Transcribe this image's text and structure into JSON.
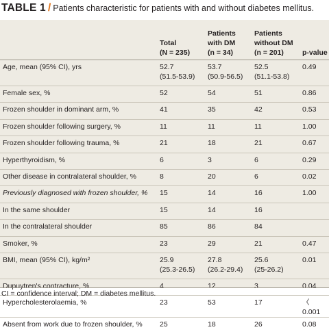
{
  "caption": {
    "label": "TABLE 1",
    "slash": "/",
    "text": "Patients characteristic for patients with and without diabetes mellitus."
  },
  "table": {
    "headers": [
      "",
      "Total (N = 235)",
      "Patients with DM (n = 34)",
      "Patients without DM (n = 201)",
      "p-value"
    ],
    "header_lines": [
      [
        ""
      ],
      [
        "Total",
        "(N = 235)"
      ],
      [
        "Patients",
        "with DM",
        "(n = 34)"
      ],
      [
        "Patients",
        "without DM",
        "(n = 201)"
      ],
      [
        "p-value"
      ]
    ],
    "rows": [
      {
        "label": "Age, mean (95% CI), yrs",
        "total": "52.7",
        "total2": "(51.5-53.9)",
        "dm": "53.7",
        "dm2": "(50.9-56.5)",
        "nodm": "52.5",
        "nodm2": "(51.1-53.8)",
        "p": "0.49"
      },
      {
        "label": "Female sex, %",
        "total": "52",
        "dm": "54",
        "nodm": "51",
        "p": "0.86"
      },
      {
        "label": "Frozen shoulder in dominant arm, %",
        "total": "41",
        "dm": "35",
        "nodm": "42",
        "p": "0.53"
      },
      {
        "label": "Frozen shoulder following surgery, %",
        "total": "11",
        "dm": "11",
        "nodm": "11",
        "p": "1.00"
      },
      {
        "label": "Frozen shoulder following trauma, %",
        "total": "21",
        "dm": "18",
        "nodm": "21",
        "p": "0.67"
      },
      {
        "label": "Hyperthyroidism, %",
        "total": "6",
        "dm": "3",
        "nodm": "6",
        "p": "0.29"
      },
      {
        "label": "Other disease in contralateral shoulder, %",
        "total": "8",
        "dm": "20",
        "nodm": "6",
        "p": "0.02"
      },
      {
        "label": "Previously diagnosed with frozen shoulder, %",
        "total": "15",
        "dm": "14",
        "nodm": "16",
        "p": "1.00"
      },
      {
        "label": "In the same shoulder",
        "total": "15",
        "dm": "14",
        "nodm": "16",
        "p": ""
      },
      {
        "label": "In the contralateral shoulder",
        "total": "85",
        "dm": "86",
        "nodm": "84",
        "p": ""
      },
      {
        "label": "Smoker, %",
        "total": "23",
        "dm": "29",
        "nodm": "21",
        "p": "0.47"
      },
      {
        "label": "BMI, mean (95% CI), kg/m²",
        "total": "25.9",
        "total2": "(25.3-26.5)",
        "dm": "27.8",
        "dm2": "(26.2-29.4)",
        "nodm": "25.6",
        "nodm2": "(25-26.2)",
        "p": "0.01"
      },
      {
        "label": "Dupuytren's contracture, %",
        "total": "4",
        "dm": "12",
        "nodm": "3",
        "p": "0.04"
      },
      {
        "label": "Hypercholesterolaemia, %",
        "total": "23",
        "dm": "53",
        "nodm": "17",
        "p": "〈 0.001"
      },
      {
        "label": "Absent from work due to frozen shoulder, %",
        "total": "25",
        "dm": "18",
        "nodm": "26",
        "p": "0.08"
      }
    ]
  },
  "footnote": "CI = confidence interval; DM = diabetes mellitus."
}
